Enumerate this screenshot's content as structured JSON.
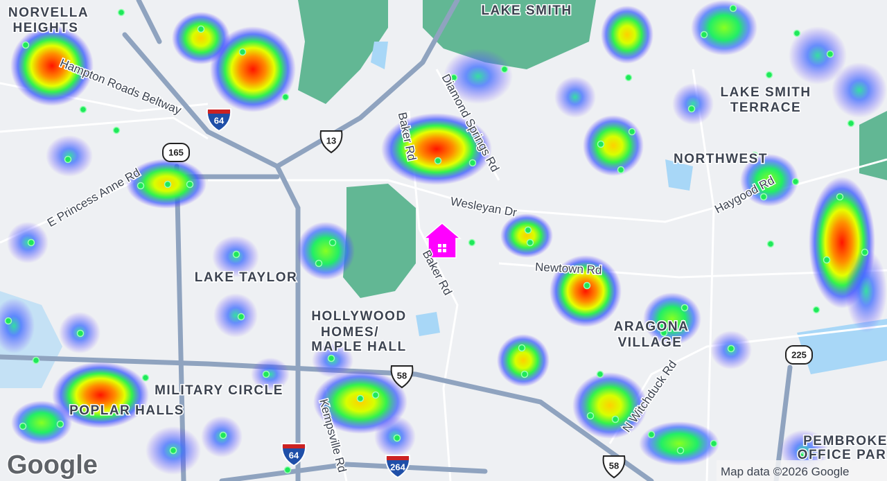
{
  "map": {
    "areas": [
      [
        "NORVELLA",
        "HEIGHTS"
      ],
      [
        "LAKE SMITH"
      ],
      [
        "LAKE SMITH",
        "TERRACE"
      ],
      [
        "NORTHWEST"
      ],
      [
        "LAKE TAYLOR"
      ],
      [
        "HOLLYWOOD",
        "HOMES/",
        "MAPLE HALL"
      ],
      [
        "MILITARY CIRCLE"
      ],
      [
        "POPLAR HALLS"
      ],
      [
        "ARAGONA",
        "VILLAGE"
      ],
      [
        "PEMBROKE",
        "OFFICE PAR"
      ]
    ],
    "roads": [
      "Hampton Roads Beltway",
      "E Princess Anne Rd",
      "Baker Rd",
      "Diamond Springs Rd",
      "Wesleyan Dr",
      "Baker Rd",
      "Newtown Rd",
      "Haygood Rd",
      "N Witchduck Rd",
      "Kempsville Rd"
    ],
    "shields": [
      "64",
      "165",
      "13",
      "58",
      "64",
      "264",
      "58",
      "225"
    ],
    "logo": "Google",
    "attribution": "Map data ©2026 Google"
  }
}
